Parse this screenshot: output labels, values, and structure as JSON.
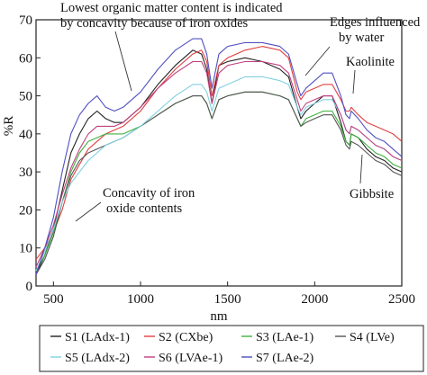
{
  "chart_data": {
    "type": "line",
    "xlabel": "nm",
    "ylabel": "%R",
    "xlim": [
      400,
      2500
    ],
    "ylim": [
      0,
      70
    ],
    "xticks": [
      500,
      1000,
      1500,
      2000,
      2500
    ],
    "yticks": [
      0,
      10,
      20,
      30,
      40,
      50,
      60,
      70
    ],
    "x": [
      400,
      450,
      500,
      550,
      600,
      650,
      700,
      750,
      800,
      850,
      900,
      1000,
      1100,
      1200,
      1300,
      1350,
      1380,
      1410,
      1450,
      1500,
      1600,
      1700,
      1800,
      1850,
      1900,
      1920,
      1950,
      2000,
      2050,
      2100,
      2150,
      2180,
      2200,
      2210,
      2250,
      2300,
      2350,
      2400,
      2450,
      2500
    ],
    "series": [
      {
        "name": "S1 (LAdx-1)",
        "color": "#222222",
        "values": [
          3,
          8,
          15,
          25,
          35,
          40,
          44,
          46,
          44,
          43,
          43,
          47,
          53,
          58,
          62,
          61,
          57,
          48,
          58,
          59,
          60,
          59,
          57,
          55,
          47,
          44,
          46,
          48,
          50,
          50,
          43,
          38,
          37,
          40,
          39,
          36,
          34,
          33,
          31,
          30
        ]
      },
      {
        "name": "S2 (CXbe)",
        "color": "#e04040",
        "values": [
          7,
          10,
          14,
          20,
          28,
          32,
          36,
          38,
          40,
          41,
          42,
          46,
          52,
          57,
          61,
          62,
          59,
          50,
          58,
          60,
          62,
          63,
          62,
          60,
          51,
          49,
          51,
          52,
          53,
          53,
          49,
          46,
          46,
          47,
          45,
          43,
          42,
          41,
          40,
          38
        ]
      },
      {
        "name": "S3 (LAe-1)",
        "color": "#40b040",
        "values": [
          4,
          8,
          14,
          22,
          30,
          35,
          38,
          39,
          40,
          40,
          40,
          42,
          45,
          48,
          50,
          50,
          48,
          44,
          49,
          50,
          51,
          51,
          50,
          49,
          44,
          42,
          44,
          45,
          46,
          46,
          42,
          38,
          37,
          40,
          39,
          37,
          35,
          34,
          32,
          31
        ]
      },
      {
        "name": "S4 (LVe)",
        "color": "#555555",
        "values": [
          3,
          7,
          13,
          22,
          29,
          33,
          35,
          36,
          37,
          38,
          39,
          42,
          45,
          48,
          50,
          50,
          48,
          44,
          49,
          50,
          51,
          51,
          50,
          49,
          44,
          42,
          43,
          44,
          45,
          45,
          41,
          37,
          36,
          38,
          37,
          35,
          33,
          32,
          30,
          29
        ]
      },
      {
        "name": "S5 (LAdx-2)",
        "color": "#80d0e0",
        "values": [
          4,
          9,
          15,
          22,
          27,
          30,
          33,
          35,
          37,
          38,
          39,
          42,
          46,
          50,
          53,
          53,
          51,
          46,
          52,
          53,
          55,
          55,
          54,
          53,
          47,
          45,
          47,
          48,
          49,
          49,
          45,
          41,
          40,
          42,
          41,
          39,
          37,
          36,
          34,
          33
        ]
      },
      {
        "name": "S6 (LVAe-1)",
        "color": "#c04080",
        "values": [
          5,
          10,
          16,
          24,
          31,
          36,
          40,
          42,
          42,
          42,
          43,
          47,
          52,
          56,
          59,
          59,
          56,
          48,
          56,
          58,
          59,
          59,
          58,
          56,
          49,
          46,
          48,
          49,
          50,
          50,
          45,
          41,
          40,
          42,
          41,
          39,
          37,
          36,
          34,
          33
        ]
      },
      {
        "name": "S7 (LAe-2)",
        "color": "#5050c0",
        "values": [
          3,
          10,
          18,
          30,
          40,
          45,
          48,
          50,
          47,
          46,
          47,
          51,
          57,
          62,
          65,
          65,
          61,
          52,
          61,
          63,
          64,
          64,
          63,
          61,
          53,
          50,
          52,
          54,
          56,
          56,
          50,
          45,
          44,
          46,
          44,
          41,
          39,
          38,
          36,
          34
        ]
      }
    ],
    "annotations": [
      {
        "text": "Lowest organic matter content is indicated",
        "text2": "by concavity because of iron oxides",
        "x": 800,
        "y": 49
      },
      {
        "text": "Edges influenced",
        "text2": "by water",
        "x": 1920,
        "y": 52
      },
      {
        "text": "Kaolinite",
        "text2": "",
        "x": 2200,
        "y": 51
      },
      {
        "text": "Concavity of iron",
        "text2": "oxide contents",
        "x": 570,
        "y": 21
      },
      {
        "text": "Gibbsite",
        "text2": "",
        "x": 2280,
        "y": 37
      }
    ],
    "grid": false,
    "legend_position": "bottom"
  }
}
